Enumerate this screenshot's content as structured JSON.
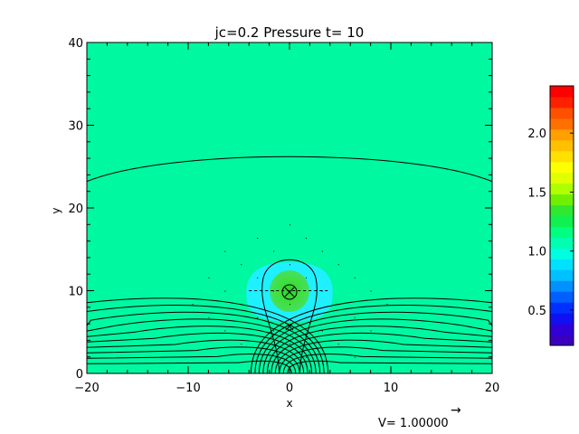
{
  "chart_data": {
    "type": "heatmap",
    "title": "jc=0.2 Pressure t= 10",
    "xlabel": "x",
    "ylabel": "y",
    "xlim": [
      -20,
      20
    ],
    "ylim": [
      0,
      40
    ],
    "x_ticks": [
      -20,
      -10,
      0,
      10,
      20
    ],
    "x_tick_labels": [
      "−20",
      "−10",
      "0",
      "10",
      "20"
    ],
    "y_ticks": [
      0,
      10,
      20,
      30,
      40
    ],
    "y_tick_labels": [
      "0",
      "10",
      "20",
      "30",
      "40"
    ],
    "background_value": 1.0,
    "features": [
      {
        "kind": "high-pressure blob",
        "x": 0,
        "y": 10,
        "value": 1.4
      },
      {
        "kind": "low-pressure halo",
        "x": 0,
        "y": 10,
        "value": 0.85
      }
    ],
    "x_points": [
      {
        "x": 0,
        "y": 10
      },
      {
        "x": 0,
        "y": 6
      }
    ],
    "contour_levels_y0": [
      -3.8,
      -3.4,
      -3.0,
      -2.6,
      -2.2,
      -1.8,
      -1.4,
      -1.0,
      -0.6,
      -0.2
    ],
    "top_field_line_y": [
      23.2,
      26.8,
      26.8,
      23.2
    ],
    "colorbar": {
      "min": 0.2,
      "max": 2.4,
      "ticks": [
        0.5,
        1.0,
        1.5,
        2.0
      ],
      "tick_labels": [
        "0.5",
        "1.0",
        "1.5",
        "2.0"
      ]
    },
    "vector_key": {
      "label": "V= 1.00000",
      "arrow": "→"
    }
  }
}
